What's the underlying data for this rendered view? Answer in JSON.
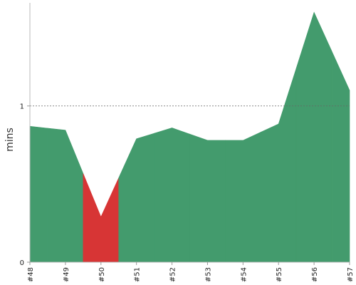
{
  "chart_data": {
    "type": "area",
    "title": "",
    "xlabel": "",
    "ylabel": "mins",
    "x": [
      "#48",
      "#49",
      "#50",
      "#51",
      "#52",
      "#53",
      "#54",
      "#55",
      "#56",
      "#57"
    ],
    "values": [
      0.87,
      0.845,
      0.29,
      0.79,
      0.86,
      0.78,
      0.78,
      0.885,
      1.6,
      1.1
    ],
    "status": [
      "success",
      "success",
      "failure",
      "success",
      "success",
      "success",
      "success",
      "success",
      "success",
      "success"
    ],
    "ylim": [
      0,
      1.66
    ],
    "yticks": [
      0,
      1
    ],
    "reference_line": {
      "value": 1,
      "style": "dashed"
    },
    "colors": {
      "success": "#439b6d",
      "failure": "#d73535",
      "reference_line": "#666666",
      "axis": "#bbbbbb"
    }
  }
}
